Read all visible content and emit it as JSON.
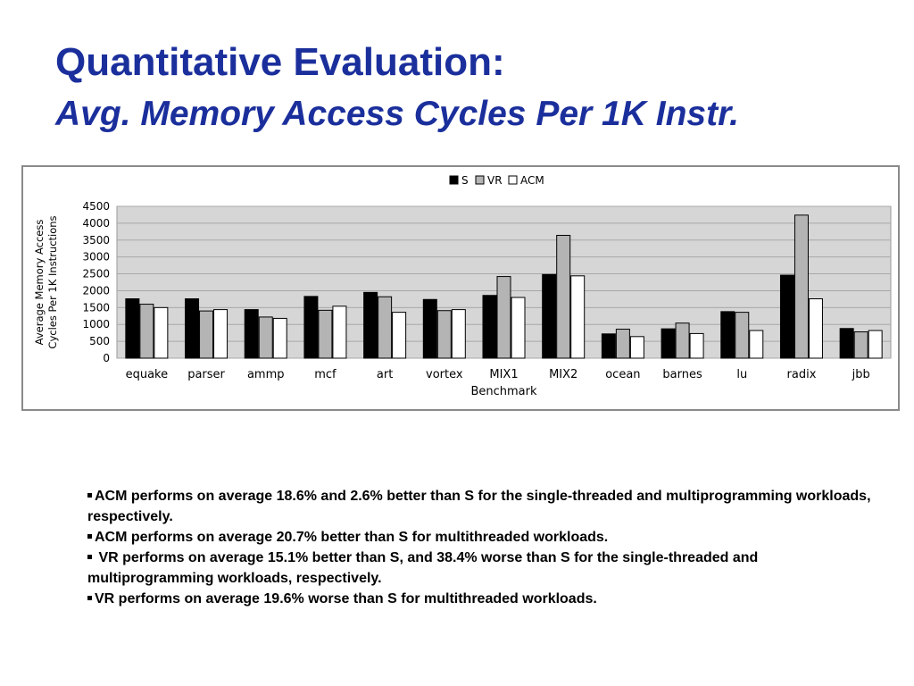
{
  "slide": {
    "title_line1": "Quantitative Evaluation:",
    "title_line2": "Avg. Memory Access Cycles Per 1K Instr."
  },
  "bullets": [
    "ACM performs on average 18.6% and 2.6% better than S for the single-threaded and multiprogramming workloads, respectively.",
    "ACM performs on average 20.7% better than S for multithreaded workloads.",
    " VR performs on average 15.1% better than S, and 38.4% worse than S for the single-threaded and multiprogramming workloads, respectively.",
    "VR performs on average 19.6% worse than S for multithreaded workloads."
  ],
  "chart_data": {
    "type": "bar",
    "xlabel": "Benchmark",
    "ylabel_lines": [
      "Average Memory Access",
      "Cycles Per 1K Instructions"
    ],
    "ylim": [
      0,
      4500
    ],
    "yticks": [
      0,
      500,
      1000,
      1500,
      2000,
      2500,
      3000,
      3500,
      4000,
      4500
    ],
    "grid": true,
    "legend_position": "top-center",
    "categories": [
      "equake",
      "parser",
      "ammp",
      "mcf",
      "art",
      "vortex",
      "MIX1",
      "MIX2",
      "ocean",
      "barnes",
      "lu",
      "radix",
      "jbb"
    ],
    "series": [
      {
        "name": "S",
        "color": "#000000",
        "values": [
          1760,
          1760,
          1440,
          1830,
          1950,
          1740,
          1860,
          2480,
          720,
          870,
          1380,
          2460,
          880
        ]
      },
      {
        "name": "VR",
        "color": "#b4b4b4",
        "values": [
          1600,
          1400,
          1220,
          1420,
          1820,
          1410,
          2420,
          3640,
          860,
          1040,
          1360,
          4240,
          780
        ]
      },
      {
        "name": "ACM",
        "color": "#ffffff",
        "values": [
          1500,
          1440,
          1180,
          1540,
          1360,
          1440,
          1800,
          2440,
          640,
          730,
          820,
          1760,
          820
        ]
      }
    ],
    "plot_background": "#d6d6d6"
  }
}
